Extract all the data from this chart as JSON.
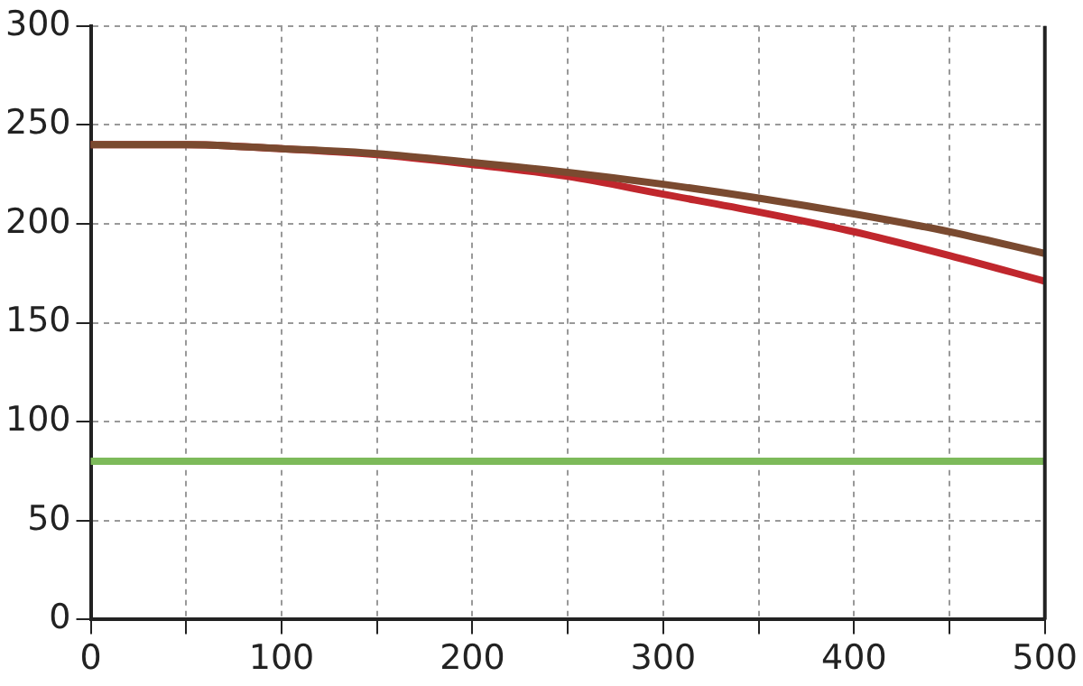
{
  "chart_data": {
    "type": "line",
    "x": [
      0,
      50,
      100,
      150,
      200,
      250,
      300,
      350,
      400,
      450,
      500
    ],
    "series": [
      {
        "color": "#7a4a30",
        "values": [
          240,
          240,
          238,
          235.5,
          231,
          226,
          220,
          213,
          205,
          196,
          185
        ]
      },
      {
        "color": "#c0272d",
        "values": [
          240,
          240,
          238,
          235,
          230,
          224,
          215,
          206,
          196,
          184,
          171
        ]
      },
      {
        "color": "#7dba5a",
        "values": [
          80,
          80,
          80,
          80,
          80,
          80,
          80,
          80,
          80,
          80,
          80
        ]
      }
    ],
    "xlim": [
      0,
      500
    ],
    "xticks": [
      0,
      {
        "value": 50,
        "label": null
      },
      100,
      {
        "value": 150,
        "label": null
      },
      200,
      {
        "value": 250,
        "label": null
      },
      300,
      {
        "value": 350,
        "label": null
      },
      400,
      {
        "value": 450,
        "label": null
      },
      500
    ],
    "ylim": [
      0,
      300
    ],
    "yticks": [
      0,
      50,
      100,
      150,
      200,
      250,
      300
    ],
    "grid": true,
    "legend": false,
    "marker": "none",
    "line_style": "solid"
  }
}
